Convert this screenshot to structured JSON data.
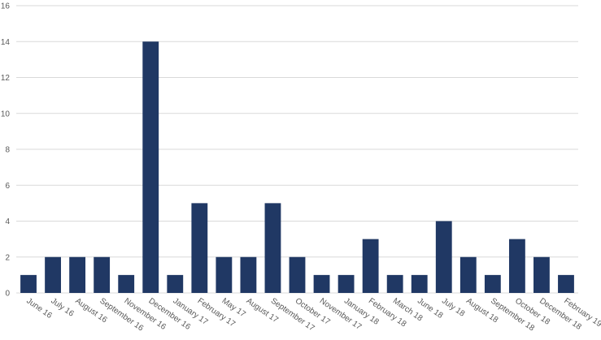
{
  "chart_data": {
    "type": "bar",
    "categories": [
      "June 16",
      "July 16",
      "August 16",
      "September 16",
      "November 16",
      "December 16",
      "January 17",
      "February 17",
      "May 17",
      "August 17",
      "September 17",
      "October 17",
      "November 17",
      "January 18",
      "February 18",
      "March 18",
      "June 18",
      "July 18",
      "August 18",
      "September 18",
      "October 18",
      "December 18",
      "February 19"
    ],
    "values": [
      1,
      2,
      2,
      2,
      1,
      14,
      1,
      5,
      2,
      2,
      5,
      2,
      1,
      1,
      3,
      1,
      1,
      4,
      2,
      1,
      3,
      2,
      1
    ],
    "color": "#203864",
    "ylim": [
      0,
      16
    ],
    "yticks": [
      0,
      2,
      4,
      6,
      8,
      10,
      12,
      14,
      16
    ],
    "grid": true
  }
}
